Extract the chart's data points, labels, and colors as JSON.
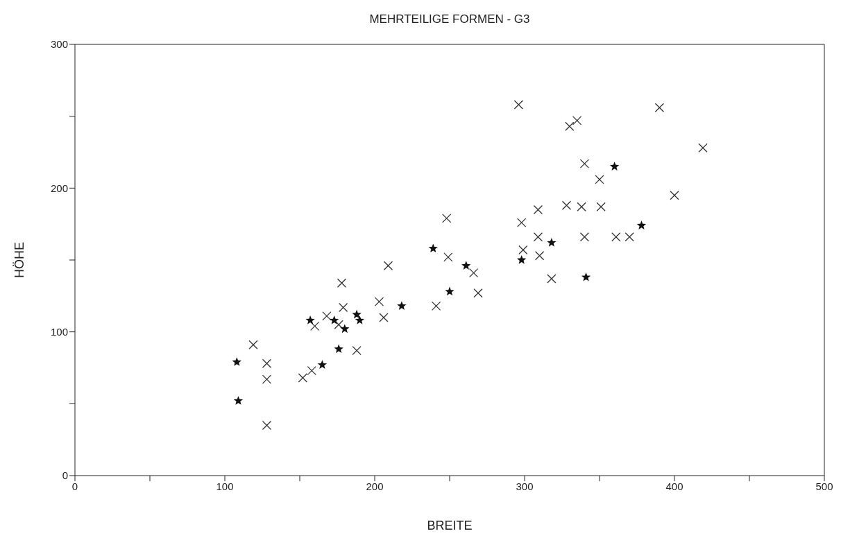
{
  "chart_data": {
    "type": "scatter",
    "title": "MEHRTEILIGE FORMEN - G3",
    "xlabel": "BREITE",
    "ylabel": "HÖHE",
    "xlim": [
      0,
      500
    ],
    "ylim": [
      0,
      300
    ],
    "xticks": [
      0,
      {
        "value": 50,
        "label": null
      },
      100,
      {
        "value": 150,
        "label": null
      },
      200,
      {
        "value": 250,
        "label": null
      },
      300,
      {
        "value": 350,
        "label": null
      },
      400,
      {
        "value": 450,
        "label": null
      },
      500
    ],
    "yticks": [
      0,
      {
        "value": 50,
        "label": null
      },
      100,
      {
        "value": 150,
        "label": null
      },
      200,
      {
        "value": 250,
        "label": null
      },
      300
    ],
    "grid": false,
    "legend": false,
    "series": [
      {
        "marker": "cross",
        "color": "#333333",
        "x": [
          209,
          266,
          269,
          178,
          203,
          179,
          168,
          176,
          160,
          206,
          241,
          188,
          119,
          128,
          128,
          128,
          152,
          158,
          296,
          390,
          330,
          335,
          419,
          340,
          350,
          400,
          309,
          328,
          338,
          351,
          298,
          309,
          340,
          361,
          370,
          299,
          310,
          318,
          249,
          248
        ],
        "values": [
          146,
          141,
          127,
          134,
          121,
          117,
          111,
          105,
          104,
          110,
          118,
          87,
          91,
          78,
          67,
          35,
          68,
          73,
          258,
          256,
          243,
          247,
          228,
          217,
          206,
          195,
          185,
          188,
          187,
          187,
          176,
          166,
          166,
          166,
          166,
          157,
          153,
          137,
          152,
          179
        ]
      },
      {
        "marker": "star",
        "color": "#111111",
        "x": [
          108,
          109,
          157,
          165,
          173,
          176,
          180,
          188,
          190,
          218,
          239,
          250,
          261,
          298,
          318,
          341,
          360,
          378
        ],
        "values": [
          79,
          52,
          108,
          77,
          108,
          88,
          102,
          112,
          108,
          118,
          158,
          128,
          146,
          150,
          162,
          138,
          215,
          174
        ]
      }
    ]
  }
}
